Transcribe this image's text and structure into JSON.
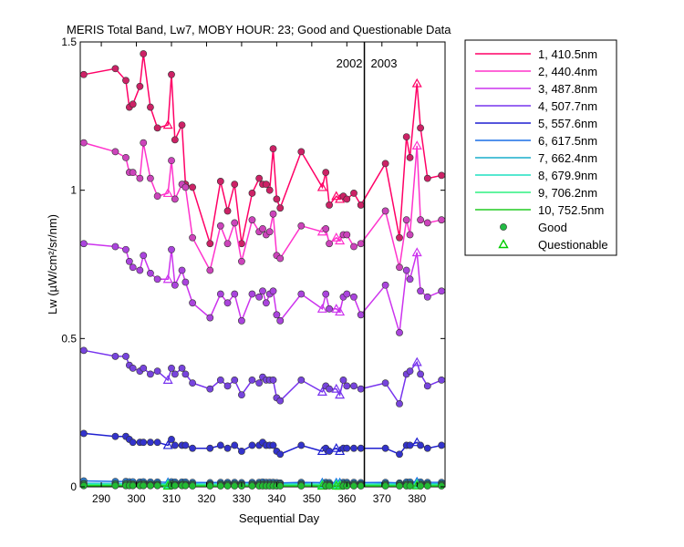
{
  "chart_data": {
    "type": "line",
    "title": "MERIS Total Band,  Lw7, MOBY HOUR: 23;  Good and Questionable Data",
    "xlabel": "Sequential Day",
    "ylabel": "Lw (µW/cm²/sr/nm)",
    "xlim": [
      284,
      388
    ],
    "ylim": [
      0,
      1.5
    ],
    "xticks": [
      290,
      300,
      310,
      320,
      330,
      340,
      350,
      360,
      370,
      380
    ],
    "yticks": [
      0,
      0.5,
      1,
      1.5
    ],
    "ytick_labels": [
      "0",
      "0.5",
      "1",
      "1.5"
    ],
    "grid": false,
    "year_divider": {
      "x": 365,
      "left_label": "2002",
      "right_label": "2003"
    },
    "legend_position": "outside-right",
    "x": [
      285,
      294,
      297,
      298,
      299,
      301,
      302,
      304,
      306,
      309,
      310,
      311,
      313,
      314,
      316,
      321,
      324,
      326,
      328,
      330,
      333,
      335,
      336,
      337,
      338,
      339,
      340,
      341,
      347,
      353,
      354,
      355,
      357,
      358,
      359,
      360,
      362,
      364,
      371,
      375,
      377,
      378,
      380,
      381,
      383,
      387
    ],
    "questionable_x": [
      309,
      353,
      357,
      358,
      380
    ],
    "series": [
      {
        "name": "1, 410.5nm",
        "color": "#ff0066",
        "marker_color": "#cc2266",
        "values": [
          1.39,
          1.41,
          1.37,
          1.28,
          1.29,
          1.35,
          1.46,
          1.28,
          1.21,
          1.22,
          1.39,
          1.17,
          1.22,
          1.02,
          1.01,
          0.82,
          1.03,
          0.93,
          1.02,
          0.82,
          0.99,
          1.04,
          1.02,
          1.02,
          1.0,
          1.14,
          0.97,
          0.94,
          1.13,
          1.01,
          1.06,
          0.95,
          0.98,
          0.97,
          0.98,
          0.97,
          0.99,
          0.95,
          1.09,
          0.84,
          1.18,
          1.11,
          1.36,
          1.21,
          1.04,
          1.05
        ]
      },
      {
        "name": "2, 440.4nm",
        "color": "#ff33cc",
        "marker_color": "#cc44bb",
        "values": [
          1.16,
          1.13,
          1.11,
          1.06,
          1.06,
          1.04,
          1.16,
          1.04,
          0.98,
          0.99,
          1.1,
          0.97,
          1.02,
          1.01,
          0.84,
          0.73,
          0.88,
          0.82,
          0.89,
          0.76,
          0.9,
          0.86,
          0.87,
          0.85,
          0.86,
          0.92,
          0.78,
          0.77,
          0.88,
          0.86,
          0.87,
          0.82,
          0.84,
          0.83,
          0.85,
          0.85,
          0.81,
          0.82,
          0.93,
          0.74,
          0.9,
          0.85,
          1.15,
          0.9,
          0.89,
          0.9
        ]
      },
      {
        "name": "3, 487.8nm",
        "color": "#cc33ee",
        "marker_color": "#aa44dd",
        "values": [
          0.82,
          0.81,
          0.8,
          0.76,
          0.74,
          0.73,
          0.78,
          0.72,
          0.7,
          0.7,
          0.8,
          0.68,
          0.73,
          0.69,
          0.62,
          0.57,
          0.65,
          0.62,
          0.65,
          0.56,
          0.65,
          0.64,
          0.66,
          0.62,
          0.65,
          0.66,
          0.58,
          0.56,
          0.65,
          0.6,
          0.65,
          0.6,
          0.6,
          0.59,
          0.64,
          0.65,
          0.64,
          0.58,
          0.68,
          0.52,
          0.73,
          0.7,
          0.79,
          0.66,
          0.64,
          0.66
        ]
      },
      {
        "name": "4, 507.7nm",
        "color": "#7733ee",
        "marker_color": "#7744dd",
        "values": [
          0.46,
          0.44,
          0.44,
          0.41,
          0.4,
          0.39,
          0.4,
          0.38,
          0.39,
          0.36,
          0.4,
          0.38,
          0.4,
          0.38,
          0.35,
          0.33,
          0.36,
          0.34,
          0.36,
          0.31,
          0.36,
          0.35,
          0.37,
          0.36,
          0.36,
          0.36,
          0.3,
          0.29,
          0.36,
          0.32,
          0.34,
          0.33,
          0.33,
          0.31,
          0.36,
          0.34,
          0.34,
          0.33,
          0.35,
          0.28,
          0.38,
          0.39,
          0.42,
          0.38,
          0.34,
          0.36
        ]
      },
      {
        "name": "5, 557.6nm",
        "color": "#1f1fd0",
        "marker_color": "#3333cc",
        "values": [
          0.18,
          0.17,
          0.17,
          0.16,
          0.15,
          0.15,
          0.15,
          0.15,
          0.15,
          0.14,
          0.16,
          0.14,
          0.14,
          0.14,
          0.13,
          0.13,
          0.14,
          0.13,
          0.14,
          0.12,
          0.14,
          0.14,
          0.15,
          0.14,
          0.14,
          0.14,
          0.12,
          0.11,
          0.14,
          0.12,
          0.13,
          0.12,
          0.13,
          0.12,
          0.13,
          0.13,
          0.13,
          0.13,
          0.13,
          0.11,
          0.14,
          0.14,
          0.15,
          0.14,
          0.13,
          0.14
        ]
      },
      {
        "name": "6, 617.5nm",
        "color": "#1a6ee6",
        "marker_color": "#2f86dd",
        "values": [
          0.02,
          0.018,
          0.018,
          0.017,
          0.017,
          0.016,
          0.017,
          0.016,
          0.016,
          0.015,
          0.017,
          0.016,
          0.016,
          0.016,
          0.015,
          0.014,
          0.015,
          0.015,
          0.015,
          0.014,
          0.015,
          0.015,
          0.016,
          0.015,
          0.015,
          0.015,
          0.014,
          0.013,
          0.015,
          0.014,
          0.015,
          0.014,
          0.014,
          0.014,
          0.015,
          0.015,
          0.015,
          0.014,
          0.015,
          0.013,
          0.016,
          0.016,
          0.017,
          0.016,
          0.015,
          0.015
        ]
      },
      {
        "name": "7, 662.4nm",
        "color": "#19aecb",
        "marker_color": "#22b3b3",
        "values": [
          0.012,
          0.011,
          0.011,
          0.011,
          0.01,
          0.01,
          0.011,
          0.01,
          0.01,
          0.01,
          0.011,
          0.01,
          0.01,
          0.01,
          0.01,
          0.009,
          0.01,
          0.01,
          0.01,
          0.009,
          0.01,
          0.01,
          0.01,
          0.01,
          0.01,
          0.01,
          0.009,
          0.009,
          0.01,
          0.009,
          0.01,
          0.009,
          0.009,
          0.009,
          0.01,
          0.01,
          0.01,
          0.009,
          0.01,
          0.009,
          0.01,
          0.01,
          0.011,
          0.01,
          0.01,
          0.01
        ]
      },
      {
        "name": "8, 679.9nm",
        "color": "#1fe0c0",
        "marker_color": "#22cc99",
        "values": [
          0.01,
          0.01,
          0.01,
          0.009,
          0.009,
          0.009,
          0.009,
          0.009,
          0.009,
          0.009,
          0.009,
          0.009,
          0.009,
          0.009,
          0.009,
          0.008,
          0.009,
          0.009,
          0.009,
          0.008,
          0.009,
          0.009,
          0.009,
          0.009,
          0.009,
          0.009,
          0.008,
          0.008,
          0.009,
          0.008,
          0.009,
          0.008,
          0.008,
          0.008,
          0.009,
          0.009,
          0.009,
          0.008,
          0.009,
          0.008,
          0.009,
          0.009,
          0.01,
          0.009,
          0.009,
          0.009
        ]
      },
      {
        "name": "9, 706.2nm",
        "color": "#2ff080",
        "marker_color": "#33cc66",
        "values": [
          0.007,
          0.007,
          0.007,
          0.007,
          0.007,
          0.006,
          0.007,
          0.006,
          0.006,
          0.006,
          0.007,
          0.006,
          0.006,
          0.006,
          0.006,
          0.006,
          0.006,
          0.006,
          0.006,
          0.006,
          0.006,
          0.006,
          0.006,
          0.006,
          0.006,
          0.006,
          0.006,
          0.005,
          0.006,
          0.006,
          0.006,
          0.006,
          0.006,
          0.006,
          0.006,
          0.006,
          0.006,
          0.006,
          0.006,
          0.005,
          0.006,
          0.006,
          0.007,
          0.006,
          0.006,
          0.006
        ]
      },
      {
        "name": "10, 752.5nm",
        "color": "#22cc22",
        "marker_color": "#22bb33",
        "values": [
          0.004,
          0.004,
          0.004,
          0.004,
          0.004,
          0.004,
          0.004,
          0.004,
          0.004,
          0.003,
          0.004,
          0.004,
          0.004,
          0.004,
          0.003,
          0.003,
          0.003,
          0.003,
          0.003,
          0.003,
          0.003,
          0.003,
          0.003,
          0.003,
          0.003,
          0.003,
          0.003,
          0.003,
          0.003,
          0.003,
          0.003,
          0.003,
          0.003,
          0.003,
          0.003,
          0.003,
          0.003,
          0.003,
          0.003,
          0.003,
          0.003,
          0.003,
          0.004,
          0.003,
          0.003,
          0.003
        ]
      }
    ],
    "marker_legend": [
      {
        "label": "Good",
        "marker": "circle",
        "color": "#22bb44"
      },
      {
        "label": "Questionable",
        "marker": "triangle",
        "color": "#00cc00"
      }
    ]
  }
}
